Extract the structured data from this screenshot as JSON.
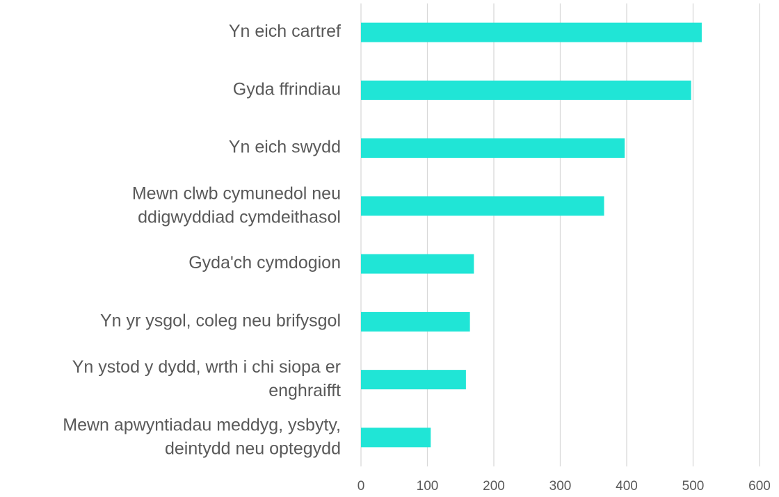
{
  "chart_data": {
    "type": "bar",
    "orientation": "horizontal",
    "categories": [
      "Yn eich cartref",
      "Gyda ffrindiau",
      "Yn eich swydd",
      "Mewn clwb cymunedol neu\nddigwyddiad cymdeithasol",
      "Gyda'ch cymdogion",
      "Yn yr ysgol, coleg neu brifysgol",
      "Yn ystod y dydd, wrth i chi siopa er\nenghraifft",
      "Mewn apwyntiadau meddyg, ysbyty,\ndeintydd neu optegydd"
    ],
    "values": [
      513,
      497,
      397,
      366,
      170,
      164,
      158,
      105
    ],
    "color": "#20e5d6",
    "xlim": [
      0,
      600
    ],
    "xticks": [
      0,
      100,
      200,
      300,
      400,
      500,
      600
    ],
    "grid": true
  }
}
